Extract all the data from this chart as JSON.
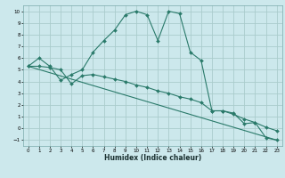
{
  "xlabel": "Humidex (Indice chaleur)",
  "bg_color": "#cce8ec",
  "grid_color": "#aacccc",
  "line_color": "#2a7a6a",
  "xlim": [
    -0.5,
    23.5
  ],
  "ylim": [
    -1.5,
    10.5
  ],
  "xticks": [
    0,
    1,
    2,
    3,
    4,
    5,
    6,
    7,
    8,
    9,
    10,
    11,
    12,
    13,
    14,
    15,
    16,
    17,
    18,
    19,
    20,
    21,
    22,
    23
  ],
  "yticks": [
    -1,
    0,
    1,
    2,
    3,
    4,
    5,
    6,
    7,
    8,
    9,
    10
  ],
  "line1_x": [
    0,
    1,
    2,
    3,
    4,
    5,
    6,
    7,
    8,
    9,
    10,
    11,
    12,
    13,
    14,
    15,
    16,
    17,
    18,
    19,
    20,
    21,
    22,
    23
  ],
  "line1_y": [
    5.3,
    6.0,
    5.3,
    4.1,
    4.6,
    5.0,
    6.5,
    7.5,
    8.4,
    9.7,
    10.0,
    9.7,
    7.5,
    10.0,
    9.8,
    6.5,
    5.8,
    1.5,
    1.5,
    1.3,
    0.4,
    0.5,
    -0.8,
    -1.0
  ],
  "line2_x": [
    0,
    1,
    2,
    3,
    4,
    5,
    6,
    7,
    8,
    9,
    10,
    11,
    12,
    13,
    14,
    15,
    16,
    17,
    18,
    19,
    20,
    21,
    22,
    23
  ],
  "line2_y": [
    5.3,
    5.3,
    5.2,
    5.0,
    3.8,
    4.5,
    4.6,
    4.4,
    4.2,
    4.0,
    3.7,
    3.5,
    3.2,
    3.0,
    2.7,
    2.5,
    2.2,
    1.5,
    1.5,
    1.2,
    0.8,
    0.5,
    0.1,
    -0.2
  ],
  "line3_x": [
    0,
    23
  ],
  "line3_y": [
    5.3,
    -1.0
  ]
}
